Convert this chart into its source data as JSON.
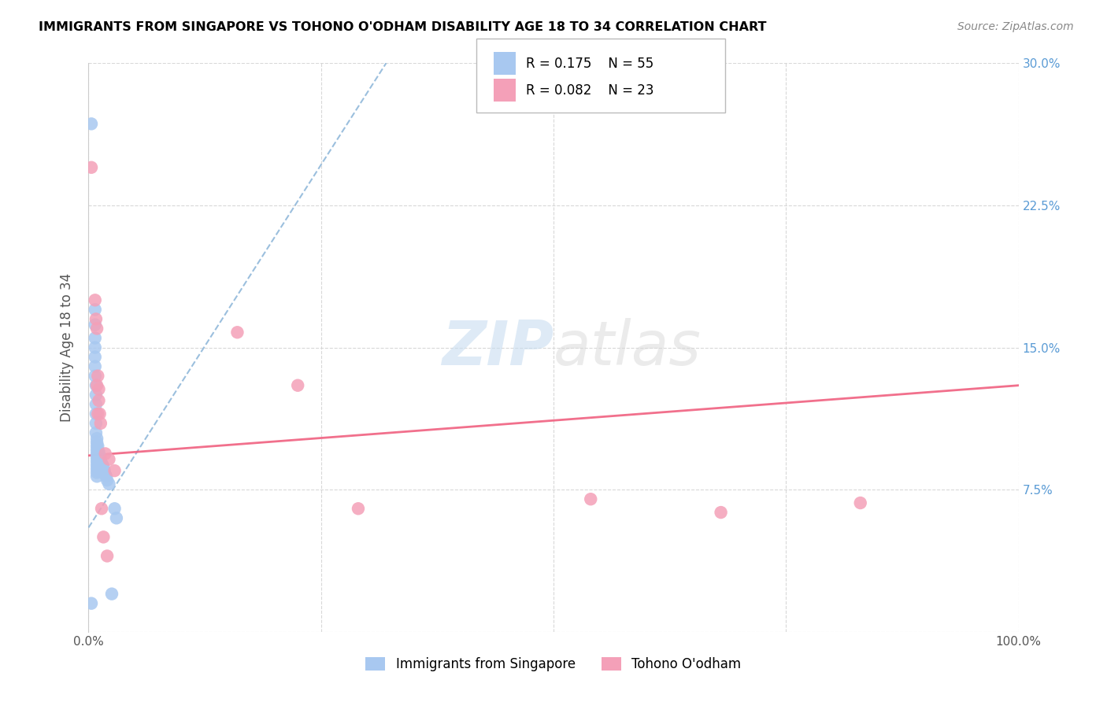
{
  "title": "IMMIGRANTS FROM SINGAPORE VS TOHONO O'ODHAM DISABILITY AGE 18 TO 34 CORRELATION CHART",
  "source": "Source: ZipAtlas.com",
  "ylabel": "Disability Age 18 to 34",
  "xlim": [
    0,
    1.0
  ],
  "ylim": [
    0,
    0.3
  ],
  "legend1_label": "Immigrants from Singapore",
  "legend2_label": "Tohono O'odham",
  "R1": 0.175,
  "N1": 55,
  "R2": 0.082,
  "N2": 23,
  "blue_color": "#a8c8f0",
  "pink_color": "#f4a0b8",
  "blue_line_color": "#8ab4d8",
  "pink_line_color": "#f06080",
  "blue_points_x": [
    0.003,
    0.007,
    0.007,
    0.007,
    0.007,
    0.007,
    0.007,
    0.007,
    0.008,
    0.008,
    0.008,
    0.008,
    0.008,
    0.008,
    0.009,
    0.009,
    0.009,
    0.009,
    0.009,
    0.009,
    0.009,
    0.009,
    0.009,
    0.009,
    0.009,
    0.01,
    0.01,
    0.01,
    0.01,
    0.01,
    0.01,
    0.01,
    0.011,
    0.011,
    0.011,
    0.011,
    0.012,
    0.012,
    0.012,
    0.013,
    0.013,
    0.014,
    0.014,
    0.015,
    0.015,
    0.016,
    0.017,
    0.018,
    0.019,
    0.02,
    0.022,
    0.025,
    0.003,
    0.028,
    0.03
  ],
  "blue_points_y": [
    0.268,
    0.17,
    0.162,
    0.155,
    0.15,
    0.145,
    0.14,
    0.135,
    0.13,
    0.125,
    0.12,
    0.115,
    0.11,
    0.105,
    0.102,
    0.1,
    0.098,
    0.096,
    0.094,
    0.092,
    0.09,
    0.088,
    0.086,
    0.084,
    0.082,
    0.098,
    0.095,
    0.093,
    0.091,
    0.089,
    0.087,
    0.085,
    0.095,
    0.092,
    0.09,
    0.087,
    0.093,
    0.09,
    0.087,
    0.091,
    0.088,
    0.089,
    0.086,
    0.088,
    0.085,
    0.087,
    0.085,
    0.083,
    0.082,
    0.08,
    0.078,
    0.02,
    0.015,
    0.065,
    0.06
  ],
  "pink_points_x": [
    0.003,
    0.007,
    0.008,
    0.009,
    0.009,
    0.01,
    0.01,
    0.011,
    0.011,
    0.012,
    0.013,
    0.014,
    0.016,
    0.018,
    0.02,
    0.022,
    0.028,
    0.16,
    0.225,
    0.29,
    0.54,
    0.68,
    0.83
  ],
  "pink_points_y": [
    0.245,
    0.175,
    0.165,
    0.16,
    0.13,
    0.135,
    0.115,
    0.128,
    0.122,
    0.115,
    0.11,
    0.065,
    0.05,
    0.094,
    0.04,
    0.091,
    0.085,
    0.158,
    0.13,
    0.065,
    0.07,
    0.063,
    0.068
  ],
  "blue_trendline_x0": 0.0,
  "blue_trendline_y0": 0.055,
  "blue_trendline_x1": 0.32,
  "blue_trendline_y1": 0.3,
  "pink_trendline_x0": 0.0,
  "pink_trendline_y0": 0.093,
  "pink_trendline_x1": 1.0,
  "pink_trendline_y1": 0.13
}
